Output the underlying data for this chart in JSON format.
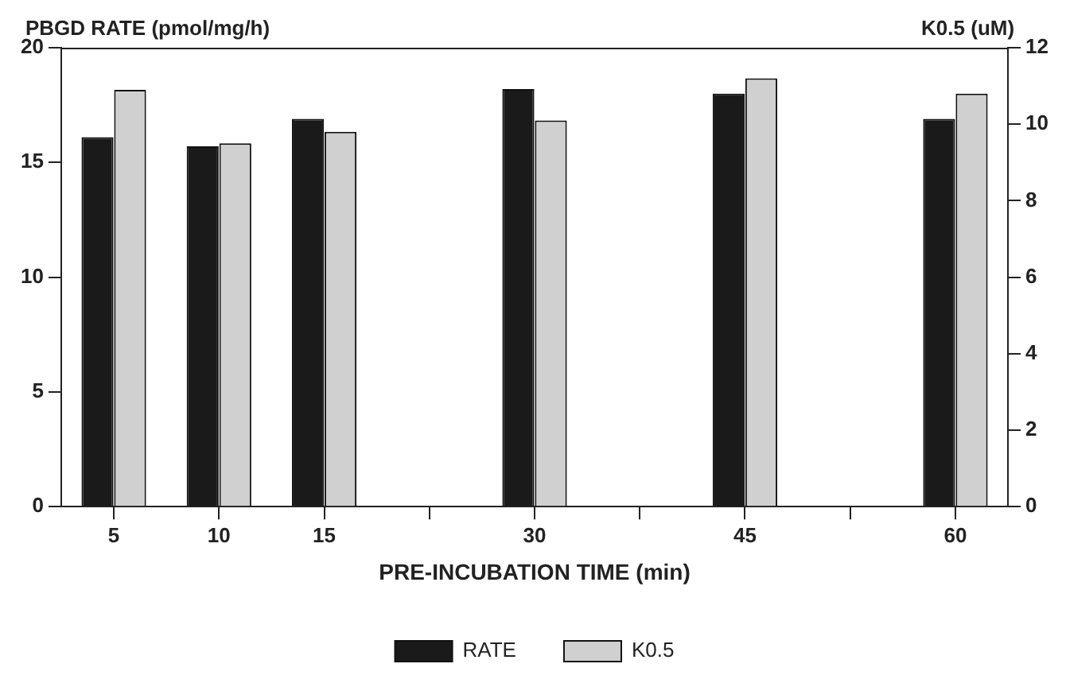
{
  "chart_data": {
    "type": "bar",
    "xlabel": "PRE-INCUBATION TIME (min)",
    "ylabel": "PBGD RATE (pmol/mg/h)",
    "y2label": "K0.5 (uM)",
    "categories": [
      "5",
      "10",
      "15",
      null,
      "30",
      null,
      "45",
      null,
      "60"
    ],
    "series": [
      {
        "name": "RATE",
        "color": "#1a1a1a",
        "values": [
          16.1,
          15.7,
          16.9,
          null,
          18.2,
          null,
          18.0,
          null,
          16.9
        ]
      },
      {
        "name": "K0.5",
        "color": "#d0d0d0",
        "axis": "y2",
        "values": [
          10.9,
          9.5,
          9.8,
          null,
          10.1,
          null,
          11.2,
          null,
          10.8
        ]
      }
    ],
    "ylim": [
      0,
      20
    ],
    "yticks": [
      0,
      5,
      10,
      15,
      20
    ],
    "y2lim": [
      0,
      12
    ],
    "y2ticks": [
      0,
      2,
      4,
      6,
      8,
      10,
      12
    ],
    "grid": false,
    "legend": "bottom"
  }
}
